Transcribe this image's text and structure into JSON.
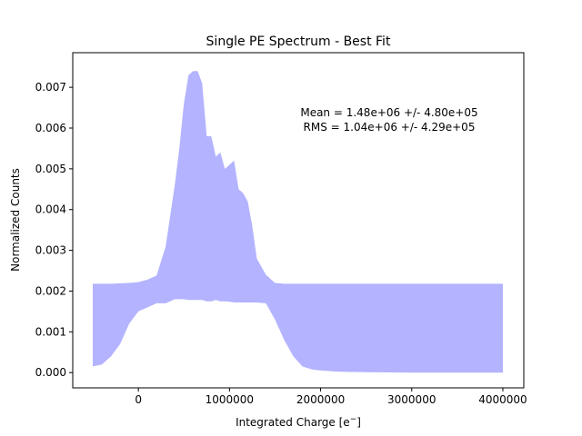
{
  "chart_data": {
    "type": "area",
    "title": "Single PE Spectrum - Best Fit",
    "xlabel": "Integrated Charge [e",
    "xlabel_sup": "−",
    "xlabel_close": "]",
    "ylabel": "Normalized Counts",
    "xlim": [
      -720000,
      4230000
    ],
    "ylim": [
      -0.000375,
      0.00785
    ],
    "xticks": [
      0,
      1000000,
      2000000,
      3000000,
      4000000
    ],
    "xtick_labels": [
      "0",
      "1000000",
      "2000000",
      "3000000",
      "4000000"
    ],
    "yticks": [
      0.0,
      0.001,
      0.002,
      0.003,
      0.004,
      0.005,
      0.006,
      0.007
    ],
    "ytick_labels": [
      "0.000",
      "0.001",
      "0.002",
      "0.003",
      "0.004",
      "0.005",
      "0.006",
      "0.007"
    ],
    "grid": false,
    "fill_color": "#b3b3ff",
    "series": [
      {
        "kind": "band",
        "x": [
          -500000,
          -400000,
          -300000,
          -200000,
          -100000,
          0,
          100000,
          200000,
          300000,
          400000,
          450000,
          500000,
          550000,
          600000,
          650000,
          700000,
          750000,
          800000,
          850000,
          900000,
          950000,
          1000000,
          1050000,
          1100000,
          1150000,
          1200000,
          1250000,
          1300000,
          1400000,
          1500000,
          1600000,
          1700000,
          1800000,
          1900000,
          2000000,
          2200000,
          2500000,
          3000000,
          3500000,
          4000000
        ],
        "upper": [
          0.00218,
          0.00218,
          0.00218,
          0.00219,
          0.0022,
          0.00222,
          0.00228,
          0.00238,
          0.0031,
          0.0046,
          0.0055,
          0.0066,
          0.0073,
          0.0074,
          0.0074,
          0.0071,
          0.0058,
          0.0058,
          0.0053,
          0.0054,
          0.005,
          0.0051,
          0.0052,
          0.0045,
          0.0044,
          0.0042,
          0.0036,
          0.0028,
          0.0024,
          0.0022,
          0.00218,
          0.00218,
          0.00218,
          0.00218,
          0.00218,
          0.00218,
          0.00218,
          0.00218,
          0.00218,
          0.00218
        ],
        "lower": [
          0.00015,
          0.0002,
          0.0004,
          0.0007,
          0.0012,
          0.0015,
          0.0016,
          0.0017,
          0.0017,
          0.0018,
          0.0018,
          0.0018,
          0.00178,
          0.00178,
          0.00178,
          0.00178,
          0.00175,
          0.00175,
          0.00178,
          0.00175,
          0.00175,
          0.00174,
          0.00172,
          0.00172,
          0.00172,
          0.00172,
          0.00172,
          0.00172,
          0.0017,
          0.0013,
          0.0008,
          0.0004,
          0.00015,
          8e-05,
          5e-05,
          2e-05,
          1e-05,
          0.0,
          0.0,
          0.0
        ]
      }
    ],
    "annotations": [
      "Mean = 1.48e+06 +/- 4.80e+05",
      "RMS = 1.04e+06 +/- 4.29e+05"
    ]
  }
}
